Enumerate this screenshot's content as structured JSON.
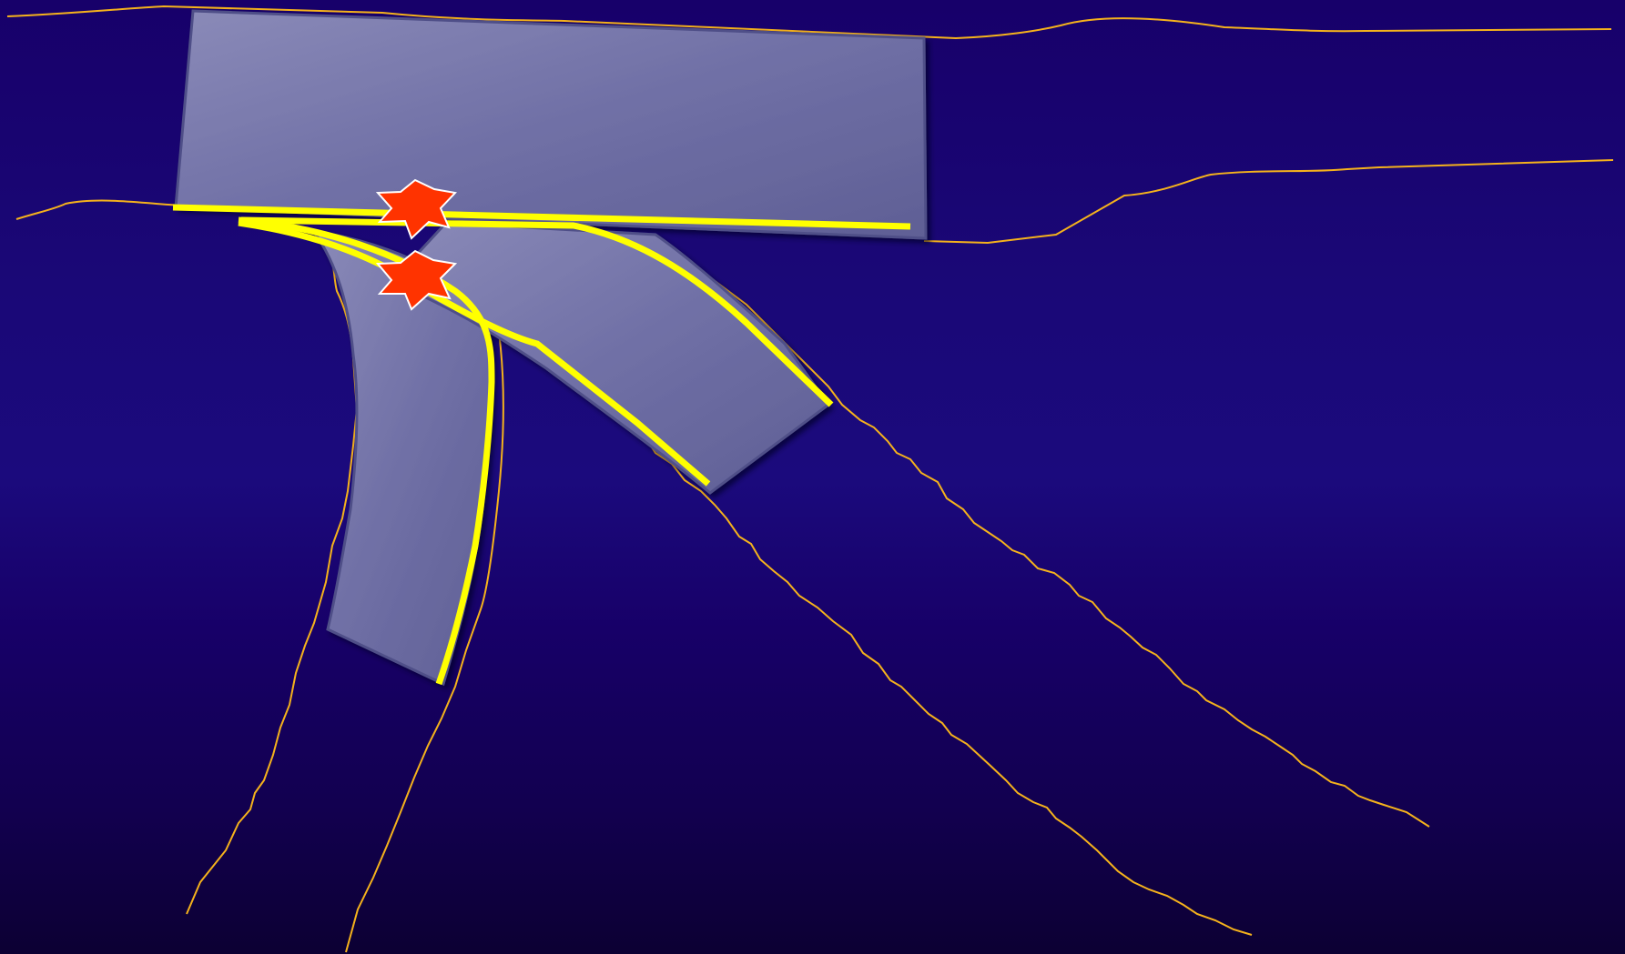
{
  "diagram": {
    "kind": "bifurcation stent schematic",
    "colors": {
      "background_top": "#17006a",
      "background_bottom": "#0c0033",
      "stent_fill": "#7070a6",
      "stent_edge": "#505088",
      "vessel_outline": "#f5b21c",
      "stent_strut": "#ffff00",
      "marker_fill": "#ff3300",
      "marker_stroke": "#ffffff"
    },
    "markers": [
      {
        "name": "carina-marker-upper",
        "icon": "starburst-icon"
      },
      {
        "name": "carina-marker-lower",
        "icon": "starburst-icon"
      }
    ]
  }
}
